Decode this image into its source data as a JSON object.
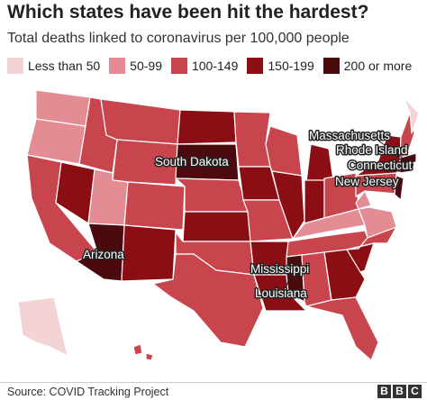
{
  "header": {
    "title": "Which states have been hit the hardest?",
    "subtitle": "Total deaths linked to coronavirus per 100,000 people"
  },
  "legend": [
    {
      "label": "Less than 50",
      "color": "#f3d3d6"
    },
    {
      "label": "50-99",
      "color": "#e48c93"
    },
    {
      "label": "100-149",
      "color": "#c8454e"
    },
    {
      "label": "150-199",
      "color": "#8c0e15"
    },
    {
      "label": "200 or more",
      "color": "#4b0a0e"
    }
  ],
  "labels": [
    "South Dakota",
    "Arizona",
    "Mississippi",
    "Louisiana",
    "Massachusetts",
    "Rhode Island",
    "Connecticut",
    "New Jersey"
  ],
  "footer": {
    "source": "Source: COVID Tracking Project",
    "logo": [
      "B",
      "B",
      "C"
    ]
  }
}
